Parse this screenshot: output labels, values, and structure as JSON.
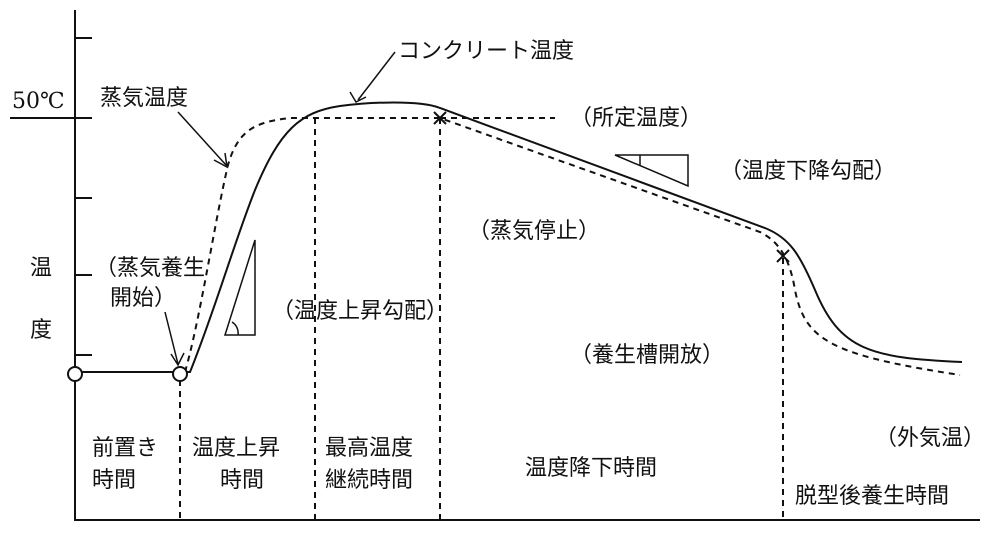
{
  "header": {
    "curve_label": "コンクリート温度",
    "steam_label": "蒸気温度",
    "temp_mark": "50℃",
    "y_axis": [
      "温",
      "度"
    ]
  },
  "annotations": {
    "set_temp": "（所定温度）",
    "cool_gradient": "（温度下降勾配）",
    "steam_stop": "（蒸気停止）",
    "steam_start": [
      "（蒸気養生",
      "開始）"
    ],
    "heat_gradient": "（温度上昇勾配）",
    "tank_open": "（養生槽開放）",
    "ambient": "（外気温）"
  },
  "phases": [
    [
      "前置き",
      "時間"
    ],
    [
      "温度上昇",
      "時間"
    ],
    [
      "最高温度",
      "継続時間"
    ],
    [
      "温度降下時間"
    ],
    [
      "脱型後養生時間"
    ]
  ]
}
